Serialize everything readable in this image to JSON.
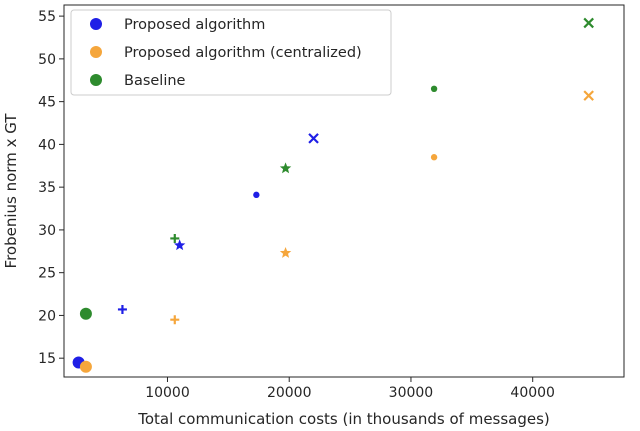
{
  "chart_data": {
    "type": "scatter",
    "title": "",
    "xlabel": "Total communication costs (in thousands of messages)",
    "ylabel": "Frobenius norm x GT",
    "xlim": [
      1500,
      47500
    ],
    "ylim": [
      12.8,
      56.3
    ],
    "xticks": [
      10000,
      20000,
      30000,
      40000
    ],
    "xtick_labels": [
      "10000",
      "20000",
      "30000",
      "40000"
    ],
    "yticks": [
      15,
      20,
      25,
      30,
      35,
      40,
      45,
      50,
      55
    ],
    "ytick_labels": [
      "15",
      "20",
      "25",
      "30",
      "35",
      "40",
      "45",
      "50",
      "55"
    ],
    "grid": false,
    "legend_position": "top-left",
    "series": [
      {
        "name": "Proposed algorithm",
        "color": "#1f1fe6",
        "points": [
          {
            "x": 2700,
            "y": 14.5,
            "marker": "circle"
          },
          {
            "x": 6300,
            "y": 20.7,
            "marker": "plus"
          },
          {
            "x": 11000,
            "y": 28.2,
            "marker": "star"
          },
          {
            "x": 17300,
            "y": 34.1,
            "marker": "dot"
          },
          {
            "x": 22000,
            "y": 40.7,
            "marker": "x"
          }
        ]
      },
      {
        "name": "Proposed algorithm (centralized)",
        "color": "#f5a63c",
        "points": [
          {
            "x": 3300,
            "y": 14.0,
            "marker": "circle"
          },
          {
            "x": 10600,
            "y": 19.5,
            "marker": "plus"
          },
          {
            "x": 19700,
            "y": 27.3,
            "marker": "star"
          },
          {
            "x": 31900,
            "y": 38.5,
            "marker": "dot"
          },
          {
            "x": 44600,
            "y": 45.7,
            "marker": "x"
          }
        ]
      },
      {
        "name": "Baseline",
        "color": "#2e8b2e",
        "points": [
          {
            "x": 3300,
            "y": 20.2,
            "marker": "circle"
          },
          {
            "x": 10600,
            "y": 29.0,
            "marker": "plus"
          },
          {
            "x": 19700,
            "y": 37.2,
            "marker": "star"
          },
          {
            "x": 31900,
            "y": 46.5,
            "marker": "dot"
          },
          {
            "x": 44600,
            "y": 54.2,
            "marker": "x"
          }
        ]
      }
    ]
  }
}
